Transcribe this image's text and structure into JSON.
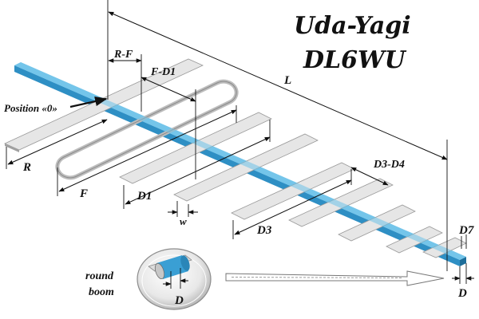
{
  "title": {
    "line1": "Uda-Yagi",
    "line2": "DL6WU"
  },
  "labels": {
    "position0": "Position «0»",
    "R": "R",
    "F": "F",
    "D1": "D1",
    "w": "w",
    "D3": "D3",
    "D7": "D7",
    "L": "L",
    "R_F": "R-F",
    "F_D1": "F-D1",
    "D3_D4": "D3-D4",
    "D": "D"
  },
  "inset": {
    "line1": "round",
    "line2": "boom",
    "D": "D"
  },
  "colors": {
    "boom_top": "#4fb3df",
    "boom_side": "#2a86b8",
    "element_top": "#e6e6e6",
    "element_edge": "#9a9a9a",
    "text": "#111111"
  },
  "icons": {
    "arrow": "hollow-right-arrow"
  }
}
